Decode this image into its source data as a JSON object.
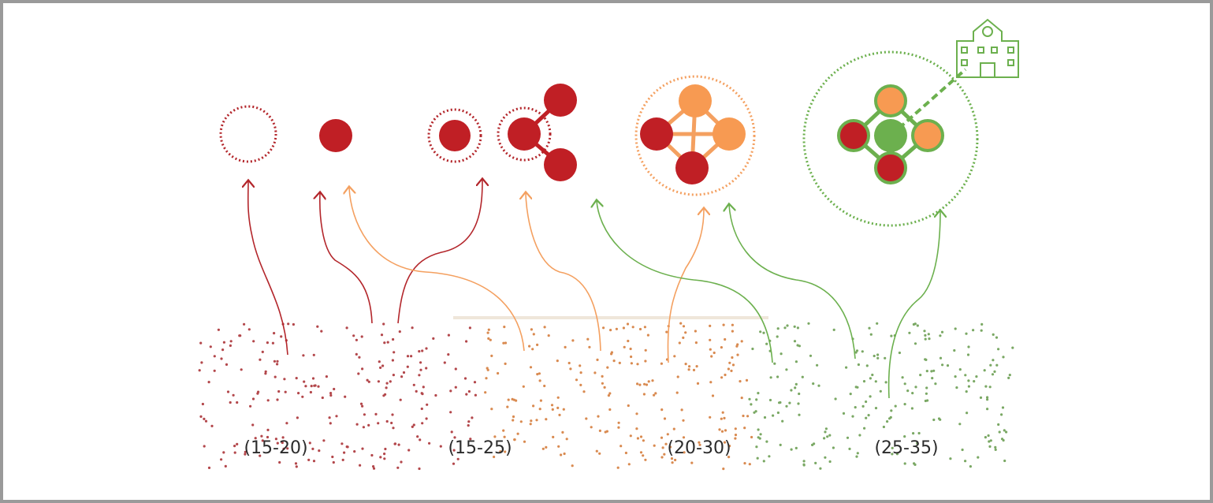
{
  "stages": [
    {
      "label": "(15-20)"
    },
    {
      "label": "(15-25)"
    },
    {
      "label": "(20-30)"
    },
    {
      "label": "(25-35)"
    }
  ]
}
